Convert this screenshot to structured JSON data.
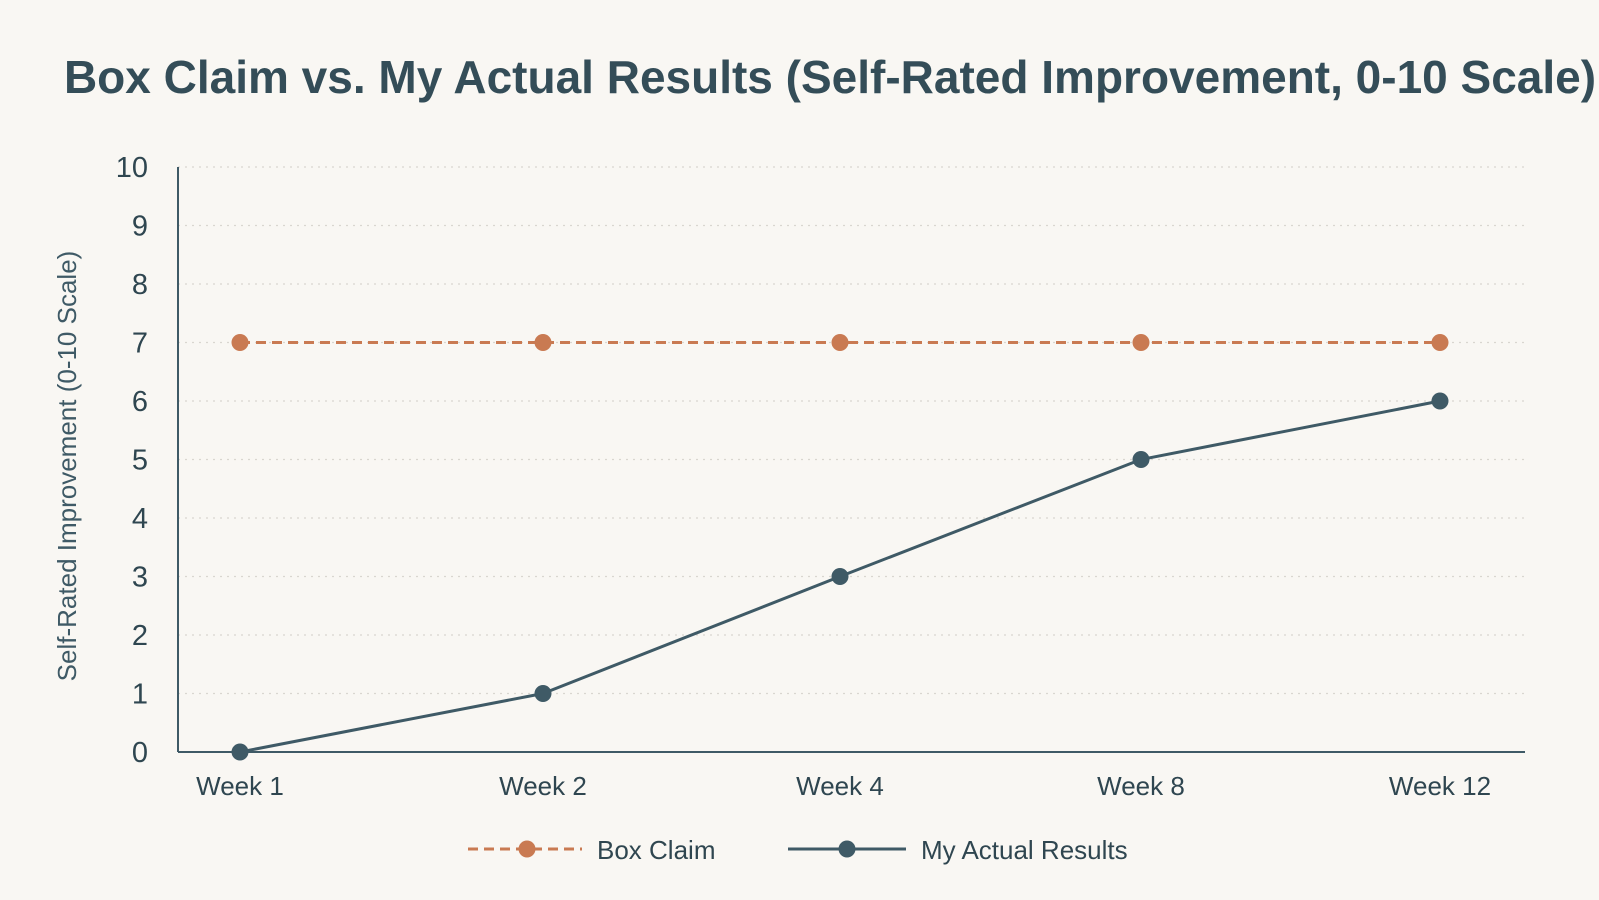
{
  "chart_data": {
    "type": "line",
    "title": "Box Claim vs. My Actual Results (Self-Rated Improvement, 0-10 Scale)",
    "xlabel": "",
    "ylabel": "Self-Rated Improvement (0-10 Scale)",
    "categories": [
      "Week 1",
      "Week 2",
      "Week 4",
      "Week 8",
      "Week 12"
    ],
    "ylim": [
      0,
      10
    ],
    "yticks": [
      "0",
      "1",
      "2",
      "3",
      "4",
      "5",
      "6",
      "7",
      "8",
      "9",
      "10"
    ],
    "grid": true,
    "legend_position": "bottom-center",
    "series": [
      {
        "name": "Box Claim",
        "values": [
          7,
          7,
          7,
          7,
          7
        ],
        "color": "#c97a52",
        "style": "dashed"
      },
      {
        "name": "My Actual Results",
        "values": [
          0,
          1,
          3,
          5,
          6
        ],
        "color": "#3f5a66",
        "style": "solid"
      }
    ]
  }
}
